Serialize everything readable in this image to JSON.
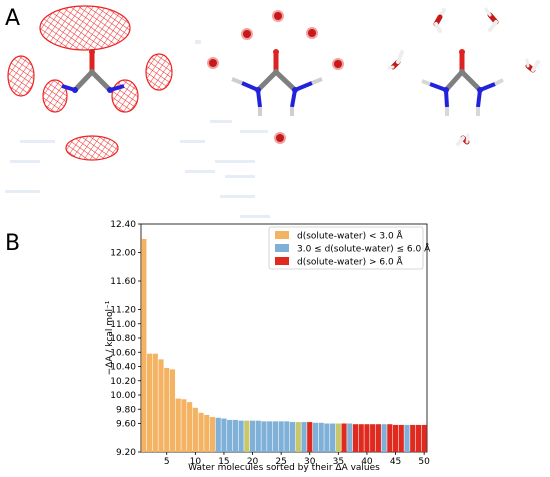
{
  "panels": {
    "a_label": "A",
    "b_label": "B"
  },
  "colors": {
    "mesh": "#ee2222",
    "carbon": "#7f7f7f",
    "nitrogen": "#2222dd",
    "oxygen": "#dd2222",
    "hydrogen": "#e8e8e8",
    "close": "#f4b263",
    "mid": "#7fb0d8",
    "far": "#e02a1f",
    "ambig": "#c8c86a"
  },
  "chart_data": {
    "type": "bar",
    "xlabel": "Water molecules sorted by their ΔA values",
    "ylabel": "−ΔA / kcal mol⁻¹",
    "ylim": [
      9.2,
      12.4
    ],
    "xlim": [
      0.5,
      50.5
    ],
    "yticks": [
      9.2,
      9.6,
      9.8,
      10.0,
      10.2,
      10.4,
      10.6,
      10.8,
      11.0,
      11.2,
      11.6,
      12.0,
      12.4
    ],
    "ytick_labels": [
      "9.20",
      "9.60",
      "9.80",
      "10.00",
      "10.20",
      "10.40",
      "10.60",
      "10.80",
      "11.00",
      "11.20",
      "11.60",
      "12.00",
      "12.40"
    ],
    "xticks": [
      5,
      10,
      15,
      20,
      25,
      30,
      35,
      40,
      45,
      50
    ],
    "legend": [
      {
        "label": "d(solute-water) < 3.0 Å",
        "color": "#f4b263"
      },
      {
        "label": "3.0 ≤ d(solute-water) ≤ 6.0 Å",
        "color": "#7fb0d8"
      },
      {
        "label": "d(solute-water) > 6.0 Å",
        "color": "#e02a1f"
      }
    ],
    "legend_placement": "top-right",
    "bars": [
      {
        "x": 1,
        "value": 12.19,
        "cls": "close"
      },
      {
        "x": 2,
        "value": 10.58,
        "cls": "close"
      },
      {
        "x": 3,
        "value": 10.58,
        "cls": "close"
      },
      {
        "x": 4,
        "value": 10.5,
        "cls": "close"
      },
      {
        "x": 5,
        "value": 10.38,
        "cls": "close"
      },
      {
        "x": 6,
        "value": 10.36,
        "cls": "close"
      },
      {
        "x": 7,
        "value": 9.95,
        "cls": "close"
      },
      {
        "x": 8,
        "value": 9.94,
        "cls": "close"
      },
      {
        "x": 9,
        "value": 9.9,
        "cls": "close"
      },
      {
        "x": 10,
        "value": 9.82,
        "cls": "close"
      },
      {
        "x": 11,
        "value": 9.75,
        "cls": "close"
      },
      {
        "x": 12,
        "value": 9.72,
        "cls": "close"
      },
      {
        "x": 13,
        "value": 9.69,
        "cls": "close"
      },
      {
        "x": 14,
        "value": 9.68,
        "cls": "mid"
      },
      {
        "x": 15,
        "value": 9.67,
        "cls": "mid"
      },
      {
        "x": 16,
        "value": 9.65,
        "cls": "mid"
      },
      {
        "x": 17,
        "value": 9.65,
        "cls": "mid"
      },
      {
        "x": 18,
        "value": 9.64,
        "cls": "mid"
      },
      {
        "x": 19,
        "value": 9.64,
        "cls": "ambig"
      },
      {
        "x": 20,
        "value": 9.64,
        "cls": "mid"
      },
      {
        "x": 21,
        "value": 9.64,
        "cls": "mid"
      },
      {
        "x": 22,
        "value": 9.63,
        "cls": "mid"
      },
      {
        "x": 23,
        "value": 9.63,
        "cls": "mid"
      },
      {
        "x": 24,
        "value": 9.63,
        "cls": "mid"
      },
      {
        "x": 25,
        "value": 9.63,
        "cls": "mid"
      },
      {
        "x": 26,
        "value": 9.63,
        "cls": "mid"
      },
      {
        "x": 27,
        "value": 9.62,
        "cls": "mid"
      },
      {
        "x": 28,
        "value": 9.62,
        "cls": "ambig"
      },
      {
        "x": 29,
        "value": 9.62,
        "cls": "mid"
      },
      {
        "x": 30,
        "value": 9.62,
        "cls": "far"
      },
      {
        "x": 31,
        "value": 9.61,
        "cls": "mid"
      },
      {
        "x": 32,
        "value": 9.61,
        "cls": "mid"
      },
      {
        "x": 33,
        "value": 9.6,
        "cls": "mid"
      },
      {
        "x": 34,
        "value": 9.6,
        "cls": "mid"
      },
      {
        "x": 35,
        "value": 9.6,
        "cls": "ambig"
      },
      {
        "x": 36,
        "value": 9.6,
        "cls": "far"
      },
      {
        "x": 37,
        "value": 9.6,
        "cls": "mid"
      },
      {
        "x": 38,
        "value": 9.59,
        "cls": "far"
      },
      {
        "x": 39,
        "value": 9.59,
        "cls": "far"
      },
      {
        "x": 40,
        "value": 9.59,
        "cls": "far"
      },
      {
        "x": 41,
        "value": 9.59,
        "cls": "far"
      },
      {
        "x": 42,
        "value": 9.59,
        "cls": "far"
      },
      {
        "x": 43,
        "value": 9.59,
        "cls": "mid"
      },
      {
        "x": 44,
        "value": 9.59,
        "cls": "far"
      },
      {
        "x": 45,
        "value": 9.58,
        "cls": "far"
      },
      {
        "x": 46,
        "value": 9.58,
        "cls": "far"
      },
      {
        "x": 47,
        "value": 9.58,
        "cls": "mid"
      },
      {
        "x": 48,
        "value": 9.58,
        "cls": "far"
      },
      {
        "x": 49,
        "value": 9.58,
        "cls": "far"
      },
      {
        "x": 50,
        "value": 9.58,
        "cls": "far"
      }
    ]
  }
}
